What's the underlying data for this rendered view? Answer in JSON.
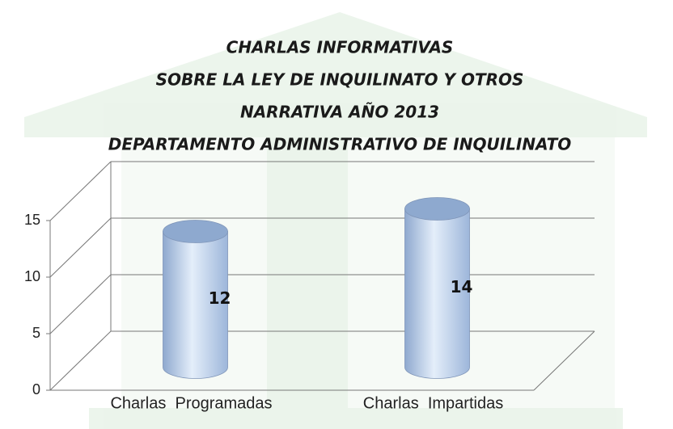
{
  "chart_data": {
    "type": "bar",
    "title": [
      "CHARLAS INFORMATIVAS",
      "SOBRE LA LEY DE INQUILINATO Y OTROS",
      "NARRATIVA AÑO 2013",
      "DEPARTAMENTO ADMINISTRATIVO DE INQUILINATO"
    ],
    "categories": [
      "Charlas  Programadas",
      "Charlas  Impartidas"
    ],
    "values": [
      12,
      14
    ],
    "color": "#b8cce4",
    "ylim": [
      0,
      15
    ],
    "yticks": [
      0,
      5,
      10,
      15
    ],
    "grid": true
  }
}
